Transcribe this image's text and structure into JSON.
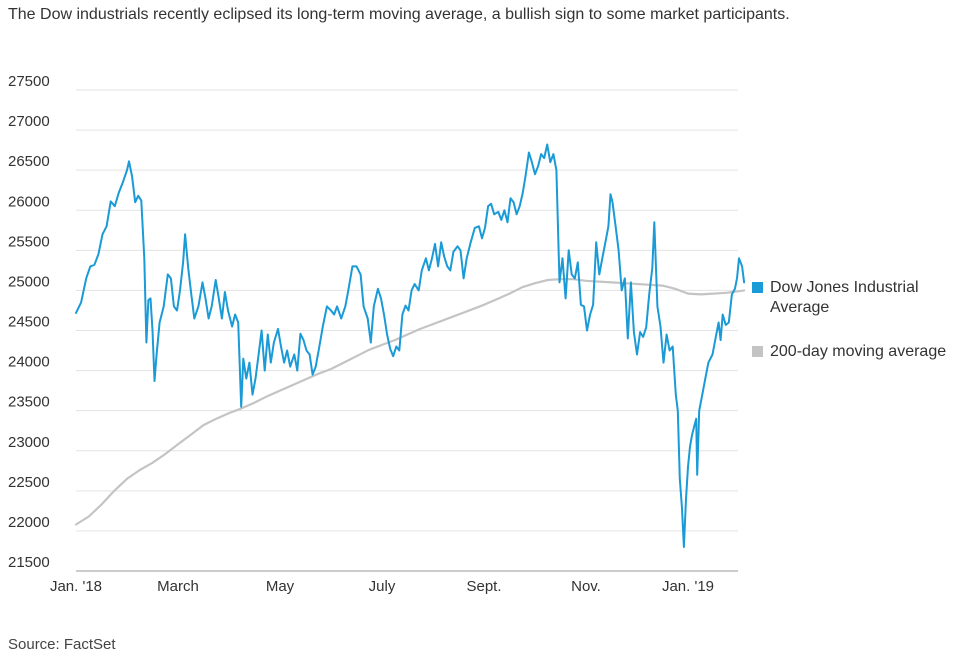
{
  "chart_data": {
    "type": "line",
    "title": "",
    "subtitle": "The Dow industrials recently eclipsed its long-term moving average, a bullish sign to some market participants.",
    "source": "Source: FactSet",
    "xlabel": "",
    "ylabel": "",
    "ylim": [
      21500,
      27500
    ],
    "yticks": [
      21500,
      22000,
      22500,
      23000,
      23500,
      24000,
      24500,
      25000,
      25500,
      26000,
      26500,
      27000,
      27500
    ],
    "xlim": [
      0,
      13.1
    ],
    "xticks": [
      {
        "label": "Jan. '18",
        "x": 0
      },
      {
        "label": "March",
        "x": 2
      },
      {
        "label": "May",
        "x": 4
      },
      {
        "label": "July",
        "x": 6
      },
      {
        "label": "Sept.",
        "x": 8
      },
      {
        "label": "Nov.",
        "x": 10
      },
      {
        "label": "Jan. '19",
        "x": 12
      }
    ],
    "grid": true,
    "legend_position": "right",
    "series": [
      {
        "name": "Dow Jones Industrial Average",
        "color": "#1a9ad6",
        "points": [
          [
            0.0,
            24720
          ],
          [
            0.1,
            24850
          ],
          [
            0.2,
            25150
          ],
          [
            0.28,
            25300
          ],
          [
            0.36,
            25320
          ],
          [
            0.44,
            25450
          ],
          [
            0.52,
            25700
          ],
          [
            0.6,
            25800
          ],
          [
            0.68,
            26110
          ],
          [
            0.76,
            26050
          ],
          [
            0.84,
            26220
          ],
          [
            0.92,
            26350
          ],
          [
            1.0,
            26500
          ],
          [
            1.04,
            26610
          ],
          [
            1.1,
            26420
          ],
          [
            1.16,
            26100
          ],
          [
            1.22,
            26180
          ],
          [
            1.28,
            26120
          ],
          [
            1.34,
            25400
          ],
          [
            1.38,
            24350
          ],
          [
            1.42,
            24880
          ],
          [
            1.46,
            24900
          ],
          [
            1.5,
            24500
          ],
          [
            1.54,
            23870
          ],
          [
            1.58,
            24200
          ],
          [
            1.64,
            24600
          ],
          [
            1.72,
            24800
          ],
          [
            1.8,
            25200
          ],
          [
            1.86,
            25150
          ],
          [
            1.92,
            24800
          ],
          [
            1.98,
            24750
          ],
          [
            2.04,
            25000
          ],
          [
            2.1,
            25350
          ],
          [
            2.14,
            25700
          ],
          [
            2.2,
            25280
          ],
          [
            2.26,
            24950
          ],
          [
            2.32,
            24650
          ],
          [
            2.4,
            24800
          ],
          [
            2.48,
            25100
          ],
          [
            2.54,
            24900
          ],
          [
            2.6,
            24650
          ],
          [
            2.66,
            24800
          ],
          [
            2.74,
            25130
          ],
          [
            2.8,
            24900
          ],
          [
            2.86,
            24650
          ],
          [
            2.92,
            24980
          ],
          [
            2.98,
            24750
          ],
          [
            3.06,
            24550
          ],
          [
            3.12,
            24700
          ],
          [
            3.18,
            24600
          ],
          [
            3.24,
            23550
          ],
          [
            3.28,
            24150
          ],
          [
            3.34,
            23900
          ],
          [
            3.4,
            24100
          ],
          [
            3.46,
            23700
          ],
          [
            3.52,
            23900
          ],
          [
            3.58,
            24200
          ],
          [
            3.64,
            24500
          ],
          [
            3.7,
            24000
          ],
          [
            3.76,
            24450
          ],
          [
            3.82,
            24100
          ],
          [
            3.88,
            24350
          ],
          [
            3.96,
            24520
          ],
          [
            4.02,
            24300
          ],
          [
            4.08,
            24100
          ],
          [
            4.14,
            24250
          ],
          [
            4.2,
            24050
          ],
          [
            4.28,
            24200
          ],
          [
            4.34,
            24000
          ],
          [
            4.4,
            24460
          ],
          [
            4.46,
            24380
          ],
          [
            4.52,
            24250
          ],
          [
            4.58,
            24200
          ],
          [
            4.64,
            23950
          ],
          [
            4.7,
            24050
          ],
          [
            4.76,
            24260
          ],
          [
            4.84,
            24550
          ],
          [
            4.92,
            24800
          ],
          [
            5.0,
            24750
          ],
          [
            5.06,
            24700
          ],
          [
            5.12,
            24800
          ],
          [
            5.2,
            24650
          ],
          [
            5.28,
            24800
          ],
          [
            5.34,
            25000
          ],
          [
            5.42,
            25300
          ],
          [
            5.5,
            25300
          ],
          [
            5.58,
            25200
          ],
          [
            5.64,
            24800
          ],
          [
            5.72,
            24650
          ],
          [
            5.78,
            24350
          ],
          [
            5.84,
            24800
          ],
          [
            5.92,
            25020
          ],
          [
            5.98,
            24900
          ],
          [
            6.04,
            24700
          ],
          [
            6.1,
            24450
          ],
          [
            6.16,
            24270
          ],
          [
            6.22,
            24180
          ],
          [
            6.28,
            24300
          ],
          [
            6.34,
            24250
          ],
          [
            6.4,
            24700
          ],
          [
            6.46,
            24810
          ],
          [
            6.52,
            24750
          ],
          [
            6.58,
            25000
          ],
          [
            6.64,
            25080
          ],
          [
            6.72,
            25000
          ],
          [
            6.78,
            25250
          ],
          [
            6.86,
            25400
          ],
          [
            6.92,
            25250
          ],
          [
            6.98,
            25400
          ],
          [
            7.04,
            25580
          ],
          [
            7.1,
            25300
          ],
          [
            7.16,
            25600
          ],
          [
            7.22,
            25420
          ],
          [
            7.28,
            25300
          ],
          [
            7.34,
            25250
          ],
          [
            7.4,
            25480
          ],
          [
            7.48,
            25550
          ],
          [
            7.54,
            25500
          ],
          [
            7.6,
            25150
          ],
          [
            7.66,
            25400
          ],
          [
            7.74,
            25600
          ],
          [
            7.82,
            25780
          ],
          [
            7.9,
            25800
          ],
          [
            7.96,
            25650
          ],
          [
            8.02,
            25780
          ],
          [
            8.08,
            26050
          ],
          [
            8.14,
            26080
          ],
          [
            8.2,
            25950
          ],
          [
            8.28,
            25980
          ],
          [
            8.34,
            25880
          ],
          [
            8.4,
            26000
          ],
          [
            8.46,
            25850
          ],
          [
            8.52,
            26150
          ],
          [
            8.58,
            26100
          ],
          [
            8.64,
            25950
          ],
          [
            8.7,
            26050
          ],
          [
            8.76,
            26220
          ],
          [
            8.82,
            26450
          ],
          [
            8.88,
            26720
          ],
          [
            8.94,
            26600
          ],
          [
            9.0,
            26450
          ],
          [
            9.06,
            26550
          ],
          [
            9.12,
            26700
          ],
          [
            9.18,
            26650
          ],
          [
            9.24,
            26820
          ],
          [
            9.3,
            26600
          ],
          [
            9.36,
            26700
          ],
          [
            9.42,
            26500
          ],
          [
            9.48,
            25100
          ],
          [
            9.54,
            25400
          ],
          [
            9.6,
            24900
          ],
          [
            9.66,
            25500
          ],
          [
            9.72,
            25200
          ],
          [
            9.78,
            25150
          ],
          [
            9.84,
            25350
          ],
          [
            9.9,
            24820
          ],
          [
            9.96,
            24800
          ],
          [
            10.02,
            24500
          ],
          [
            10.08,
            24700
          ],
          [
            10.14,
            24820
          ],
          [
            10.2,
            25600
          ],
          [
            10.26,
            25200
          ],
          [
            10.32,
            25400
          ],
          [
            10.38,
            25600
          ],
          [
            10.44,
            25800
          ],
          [
            10.48,
            26200
          ],
          [
            10.52,
            26100
          ],
          [
            10.58,
            25800
          ],
          [
            10.64,
            25500
          ],
          [
            10.7,
            25000
          ],
          [
            10.76,
            25150
          ],
          [
            10.82,
            24400
          ],
          [
            10.88,
            25100
          ],
          [
            10.94,
            24480
          ],
          [
            11.0,
            24200
          ],
          [
            11.06,
            24480
          ],
          [
            11.12,
            24420
          ],
          [
            11.18,
            24540
          ],
          [
            11.24,
            24950
          ],
          [
            11.3,
            25280
          ],
          [
            11.34,
            25850
          ],
          [
            11.4,
            24800
          ],
          [
            11.46,
            24550
          ],
          [
            11.52,
            24100
          ],
          [
            11.58,
            24450
          ],
          [
            11.64,
            24250
          ],
          [
            11.7,
            24300
          ],
          [
            11.76,
            23700
          ],
          [
            11.8,
            23500
          ],
          [
            11.84,
            22650
          ],
          [
            11.88,
            22300
          ],
          [
            11.92,
            21800
          ],
          [
            11.96,
            22400
          ],
          [
            12.0,
            22800
          ],
          [
            12.04,
            23050
          ],
          [
            12.08,
            23200
          ],
          [
            12.12,
            23300
          ],
          [
            12.16,
            23400
          ],
          [
            12.18,
            22700
          ],
          [
            12.22,
            23500
          ],
          [
            12.28,
            23700
          ],
          [
            12.34,
            23900
          ],
          [
            12.4,
            24100
          ],
          [
            12.48,
            24200
          ],
          [
            12.54,
            24400
          ],
          [
            12.6,
            24600
          ],
          [
            12.64,
            24380
          ],
          [
            12.68,
            24700
          ],
          [
            12.74,
            24570
          ],
          [
            12.8,
            24600
          ],
          [
            12.86,
            24950
          ],
          [
            12.92,
            25020
          ],
          [
            12.96,
            25150
          ],
          [
            13.0,
            25400
          ],
          [
            13.06,
            25300
          ],
          [
            13.1,
            25100
          ]
        ]
      },
      {
        "name": "200-day moving average",
        "color": "#c4c4c4",
        "points": [
          [
            0.0,
            22080
          ],
          [
            0.25,
            22180
          ],
          [
            0.5,
            22330
          ],
          [
            0.75,
            22500
          ],
          [
            1.0,
            22650
          ],
          [
            1.25,
            22760
          ],
          [
            1.5,
            22850
          ],
          [
            1.75,
            22960
          ],
          [
            2.0,
            23080
          ],
          [
            2.25,
            23200
          ],
          [
            2.5,
            23320
          ],
          [
            2.75,
            23400
          ],
          [
            3.0,
            23470
          ],
          [
            3.25,
            23530
          ],
          [
            3.5,
            23600
          ],
          [
            3.75,
            23680
          ],
          [
            4.0,
            23750
          ],
          [
            4.25,
            23820
          ],
          [
            4.5,
            23890
          ],
          [
            4.75,
            23960
          ],
          [
            5.0,
            24020
          ],
          [
            5.25,
            24100
          ],
          [
            5.5,
            24180
          ],
          [
            5.75,
            24260
          ],
          [
            6.0,
            24320
          ],
          [
            6.25,
            24380
          ],
          [
            6.5,
            24450
          ],
          [
            6.75,
            24520
          ],
          [
            7.0,
            24580
          ],
          [
            7.25,
            24640
          ],
          [
            7.5,
            24700
          ],
          [
            7.75,
            24760
          ],
          [
            8.0,
            24820
          ],
          [
            8.25,
            24890
          ],
          [
            8.5,
            24960
          ],
          [
            8.75,
            25040
          ],
          [
            9.0,
            25090
          ],
          [
            9.25,
            25130
          ],
          [
            9.5,
            25140
          ],
          [
            9.75,
            25140
          ],
          [
            10.0,
            25120
          ],
          [
            10.25,
            25110
          ],
          [
            10.5,
            25100
          ],
          [
            10.75,
            25090
          ],
          [
            11.0,
            25080
          ],
          [
            11.25,
            25070
          ],
          [
            11.5,
            25060
          ],
          [
            11.75,
            25020
          ],
          [
            12.0,
            24960
          ],
          [
            12.25,
            24950
          ],
          [
            12.5,
            24960
          ],
          [
            12.75,
            24970
          ],
          [
            13.0,
            24990
          ],
          [
            13.1,
            25000
          ]
        ]
      }
    ]
  }
}
